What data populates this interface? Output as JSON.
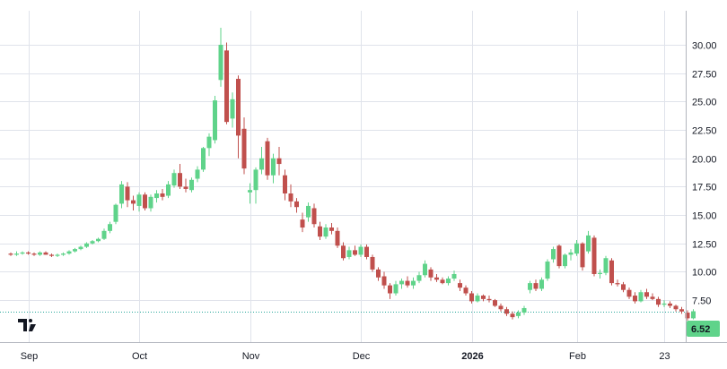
{
  "chart_data": {
    "type": "candlestick",
    "title": "",
    "xlabel": "",
    "ylabel": "",
    "ylim": [
      3.8,
      33.0
    ],
    "y_ticks": [
      "7.50",
      "10.00",
      "12.50",
      "15.00",
      "17.50",
      "20.00",
      "22.50",
      "25.00",
      "27.50",
      "30.00"
    ],
    "x_ticks": [
      "Sep",
      "Oct",
      "Nov",
      "Dec",
      "2026",
      "Feb",
      "23"
    ],
    "x_tick_index": [
      3,
      22,
      41,
      60,
      79,
      97,
      112
    ],
    "last_price": "6.52",
    "grid": true,
    "up_color": "#5fd38a",
    "down_color": "#c0504d",
    "ohlc": [
      [
        11.6,
        11.7,
        11.4,
        11.5
      ],
      [
        11.5,
        11.8,
        11.4,
        11.6
      ],
      [
        11.6,
        11.8,
        11.5,
        11.7
      ],
      [
        11.7,
        11.8,
        11.5,
        11.6
      ],
      [
        11.6,
        11.7,
        11.4,
        11.5
      ],
      [
        11.5,
        11.8,
        11.4,
        11.7
      ],
      [
        11.7,
        11.8,
        11.5,
        11.5
      ],
      [
        11.5,
        11.6,
        11.3,
        11.4
      ],
      [
        11.4,
        11.6,
        11.3,
        11.5
      ],
      [
        11.5,
        11.7,
        11.4,
        11.6
      ],
      [
        11.6,
        11.9,
        11.5,
        11.8
      ],
      [
        11.8,
        12.1,
        11.7,
        12.0
      ],
      [
        12.0,
        12.3,
        11.9,
        12.2
      ],
      [
        12.2,
        12.6,
        12.1,
        12.5
      ],
      [
        12.5,
        12.8,
        12.4,
        12.7
      ],
      [
        12.7,
        13.0,
        12.6,
        12.9
      ],
      [
        12.9,
        13.8,
        12.8,
        13.6
      ],
      [
        13.6,
        14.4,
        13.4,
        14.2
      ],
      [
        14.4,
        16.0,
        14.2,
        15.9
      ],
      [
        16.0,
        18.0,
        15.6,
        17.7
      ],
      [
        17.5,
        17.9,
        15.7,
        16.3
      ],
      [
        16.3,
        16.7,
        15.4,
        16.0
      ],
      [
        15.8,
        17.0,
        15.3,
        16.8
      ],
      [
        16.8,
        17.0,
        15.4,
        15.6
      ],
      [
        15.6,
        16.8,
        15.3,
        16.6
      ],
      [
        16.5,
        17.2,
        16.1,
        16.9
      ],
      [
        16.9,
        17.3,
        16.3,
        16.6
      ],
      [
        16.7,
        18.0,
        16.5,
        17.7
      ],
      [
        17.6,
        19.0,
        17.4,
        18.7
      ],
      [
        18.7,
        19.5,
        17.3,
        17.5
      ],
      [
        17.5,
        18.2,
        17.0,
        17.3
      ],
      [
        17.2,
        18.3,
        17.0,
        18.1
      ],
      [
        18.2,
        19.3,
        17.9,
        19.0
      ],
      [
        19.0,
        21.0,
        18.8,
        20.9
      ],
      [
        20.9,
        22.2,
        20.2,
        21.9
      ],
      [
        21.6,
        25.5,
        21.3,
        25.1
      ],
      [
        26.9,
        31.5,
        26.3,
        30.0
      ],
      [
        29.5,
        30.2,
        23.0,
        23.2
      ],
      [
        23.5,
        25.8,
        22.7,
        25.2
      ],
      [
        27.0,
        27.3,
        20.0,
        22.0
      ],
      [
        22.6,
        23.6,
        18.6,
        19.1
      ],
      [
        17.0,
        17.8,
        16.0,
        17.2
      ],
      [
        17.2,
        19.2,
        16.0,
        19.0
      ],
      [
        19.0,
        21.0,
        18.6,
        20.0
      ],
      [
        21.5,
        21.8,
        18.1,
        18.5
      ],
      [
        18.5,
        20.4,
        17.8,
        20.0
      ],
      [
        20.0,
        21.0,
        18.5,
        19.5
      ],
      [
        18.5,
        19.0,
        16.3,
        16.9
      ],
      [
        16.9,
        17.7,
        15.7,
        16.2
      ],
      [
        16.2,
        16.5,
        15.2,
        15.7
      ],
      [
        14.6,
        15.2,
        13.5,
        13.9
      ],
      [
        14.8,
        16.1,
        14.4,
        15.8
      ],
      [
        15.6,
        16.0,
        13.9,
        14.2
      ],
      [
        14.0,
        14.4,
        12.8,
        13.1
      ],
      [
        13.1,
        14.2,
        12.9,
        13.9
      ],
      [
        13.9,
        14.3,
        13.3,
        13.6
      ],
      [
        13.6,
        13.9,
        12.1,
        12.3
      ],
      [
        12.3,
        12.6,
        11.0,
        11.2
      ],
      [
        11.3,
        12.2,
        11.1,
        11.9
      ],
      [
        11.9,
        12.3,
        11.4,
        11.5
      ],
      [
        11.5,
        12.4,
        11.3,
        12.2
      ],
      [
        12.2,
        12.4,
        11.1,
        11.3
      ],
      [
        11.3,
        11.5,
        10.0,
        10.2
      ],
      [
        10.2,
        10.4,
        9.2,
        9.5
      ],
      [
        9.6,
        10.0,
        8.5,
        8.8
      ],
      [
        8.8,
        9.0,
        7.6,
        8.1
      ],
      [
        8.1,
        9.2,
        7.9,
        8.9
      ],
      [
        8.9,
        9.4,
        8.5,
        9.2
      ],
      [
        9.2,
        9.6,
        8.6,
        8.8
      ],
      [
        8.8,
        9.5,
        8.5,
        9.2
      ],
      [
        9.2,
        10.0,
        9.0,
        9.7
      ],
      [
        9.7,
        11.0,
        9.5,
        10.7
      ],
      [
        10.2,
        10.4,
        9.2,
        9.5
      ],
      [
        9.5,
        9.8,
        9.1,
        9.3
      ],
      [
        9.3,
        9.5,
        8.9,
        9.0
      ],
      [
        9.0,
        9.6,
        8.8,
        9.4
      ],
      [
        9.4,
        10.1,
        9.2,
        9.8
      ],
      [
        9.0,
        9.3,
        8.3,
        8.6
      ],
      [
        8.6,
        8.8,
        7.9,
        8.1
      ],
      [
        8.1,
        8.3,
        7.2,
        7.4
      ],
      [
        7.4,
        8.1,
        7.3,
        7.9
      ],
      [
        7.9,
        8.0,
        7.4,
        7.6
      ],
      [
        7.6,
        7.9,
        7.3,
        7.5
      ],
      [
        7.5,
        7.6,
        6.9,
        7.0
      ],
      [
        7.0,
        7.2,
        6.5,
        6.7
      ],
      [
        6.7,
        6.9,
        6.1,
        6.3
      ],
      [
        6.3,
        6.5,
        5.8,
        6.0
      ],
      [
        6.1,
        6.6,
        5.9,
        6.4
      ],
      [
        6.4,
        7.0,
        6.2,
        6.8
      ],
      [
        8.4,
        9.2,
        8.1,
        9.0
      ],
      [
        9.0,
        9.3,
        8.3,
        8.5
      ],
      [
        8.5,
        9.5,
        8.3,
        9.3
      ],
      [
        9.4,
        11.1,
        9.2,
        10.9
      ],
      [
        11.1,
        12.2,
        10.8,
        12.0
      ],
      [
        12.3,
        12.4,
        10.3,
        10.5
      ],
      [
        10.5,
        11.6,
        10.3,
        11.5
      ],
      [
        11.5,
        12.0,
        11.0,
        11.7
      ],
      [
        11.6,
        12.8,
        11.4,
        12.5
      ],
      [
        12.5,
        12.6,
        10.1,
        10.4
      ],
      [
        11.8,
        13.6,
        11.6,
        13.2
      ],
      [
        13.0,
        13.2,
        9.6,
        9.8
      ],
      [
        9.8,
        10.2,
        9.4,
        9.9
      ],
      [
        9.9,
        11.4,
        9.7,
        11.2
      ],
      [
        11.0,
        11.2,
        8.8,
        9.0
      ],
      [
        9.0,
        9.3,
        8.7,
        8.9
      ],
      [
        8.9,
        9.1,
        8.2,
        8.4
      ],
      [
        8.4,
        8.6,
        7.6,
        7.8
      ],
      [
        7.9,
        8.2,
        7.2,
        7.4
      ],
      [
        7.4,
        8.4,
        7.3,
        8.2
      ],
      [
        8.2,
        8.5,
        7.6,
        7.8
      ],
      [
        7.8,
        8.1,
        7.5,
        7.6
      ],
      [
        7.6,
        7.8,
        6.9,
        7.1
      ],
      [
        7.1,
        7.5,
        6.9,
        7.2
      ],
      [
        7.2,
        7.4,
        6.8,
        7.0
      ],
      [
        7.0,
        7.1,
        6.5,
        6.7
      ],
      [
        6.7,
        6.9,
        6.3,
        6.5
      ],
      [
        6.4,
        6.6,
        5.7,
        5.9
      ],
      [
        5.9,
        6.7,
        5.8,
        6.52
      ]
    ]
  }
}
